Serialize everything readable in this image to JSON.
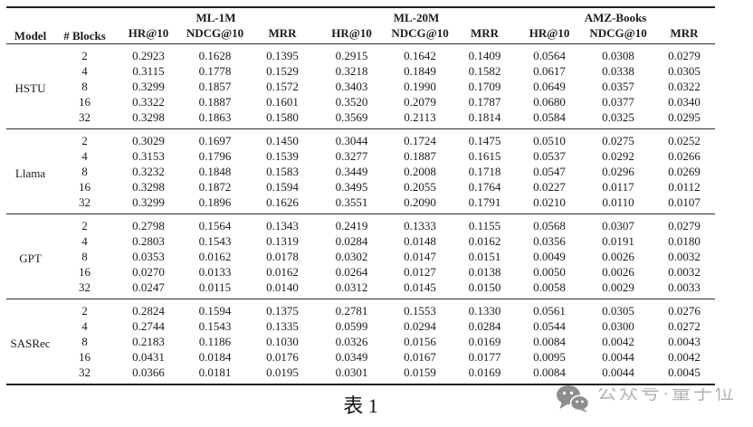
{
  "caption": "表 1",
  "watermark": {
    "icon": "wechat-icon",
    "text": "公众号·量子位"
  },
  "colors": {
    "text": "#1b1b1b",
    "rule_heavy": "#222222",
    "rule_light": "#2b2b2b",
    "watermark_icon": "#8d8d8d",
    "watermark_text": "#b3b3b3",
    "background": "#ffffff"
  },
  "table": {
    "header": {
      "model": "Model",
      "blocks": "# Blocks",
      "datasets": [
        "ML-1M",
        "ML-20M",
        "AMZ-Books"
      ],
      "metrics": [
        "HR@10",
        "NDCG@10",
        "MRR"
      ]
    },
    "groups": [
      {
        "model": "HSTU",
        "rows": [
          {
            "blocks": "2",
            "values": [
              "0.2923",
              "0.1628",
              "0.1395",
              "0.2915",
              "0.1642",
              "0.1409",
              "0.0564",
              "0.0308",
              "0.0279"
            ]
          },
          {
            "blocks": "4",
            "values": [
              "0.3115",
              "0.1778",
              "0.1529",
              "0.3218",
              "0.1849",
              "0.1582",
              "0.0617",
              "0.0338",
              "0.0305"
            ]
          },
          {
            "blocks": "8",
            "values": [
              "0.3299",
              "0.1857",
              "0.1572",
              "0.3403",
              "0.1990",
              "0.1709",
              "0.0649",
              "0.0357",
              "0.0322"
            ]
          },
          {
            "blocks": "16",
            "values": [
              "0.3322",
              "0.1887",
              "0.1601",
              "0.3520",
              "0.2079",
              "0.1787",
              "0.0680",
              "0.0377",
              "0.0340"
            ]
          },
          {
            "blocks": "32",
            "values": [
              "0.3298",
              "0.1863",
              "0.1580",
              "0.3569",
              "0.2113",
              "0.1814",
              "0.0584",
              "0.0325",
              "0.0295"
            ]
          }
        ]
      },
      {
        "model": "Llama",
        "rows": [
          {
            "blocks": "2",
            "values": [
              "0.3029",
              "0.1697",
              "0.1450",
              "0.3044",
              "0.1724",
              "0.1475",
              "0.0510",
              "0.0275",
              "0.0252"
            ]
          },
          {
            "blocks": "4",
            "values": [
              "0.3153",
              "0.1796",
              "0.1539",
              "0.3277",
              "0.1887",
              "0.1615",
              "0.0537",
              "0.0292",
              "0.0266"
            ]
          },
          {
            "blocks": "8",
            "values": [
              "0.3232",
              "0.1848",
              "0.1583",
              "0.3449",
              "0.2008",
              "0.1718",
              "0.0547",
              "0.0296",
              "0.0269"
            ]
          },
          {
            "blocks": "16",
            "values": [
              "0.3298",
              "0.1872",
              "0.1594",
              "0.3495",
              "0.2055",
              "0.1764",
              "0.0227",
              "0.0117",
              "0.0112"
            ]
          },
          {
            "blocks": "32",
            "values": [
              "0.3299",
              "0.1896",
              "0.1626",
              "0.3551",
              "0.2090",
              "0.1791",
              "0.0210",
              "0.0110",
              "0.0107"
            ]
          }
        ]
      },
      {
        "model": "GPT",
        "rows": [
          {
            "blocks": "2",
            "values": [
              "0.2798",
              "0.1564",
              "0.1343",
              "0.2419",
              "0.1333",
              "0.1155",
              "0.0568",
              "0.0307",
              "0.0279"
            ]
          },
          {
            "blocks": "4",
            "values": [
              "0.2803",
              "0.1543",
              "0.1319",
              "0.0284",
              "0.0148",
              "0.0162",
              "0.0356",
              "0.0191",
              "0.0180"
            ]
          },
          {
            "blocks": "8",
            "values": [
              "0.0353",
              "0.0162",
              "0.0178",
              "0.0302",
              "0.0147",
              "0.0151",
              "0.0049",
              "0.0026",
              "0.0032"
            ]
          },
          {
            "blocks": "16",
            "values": [
              "0.0270",
              "0.0133",
              "0.0162",
              "0.0264",
              "0.0127",
              "0.0138",
              "0.0050",
              "0.0026",
              "0.0032"
            ]
          },
          {
            "blocks": "32",
            "values": [
              "0.0247",
              "0.0115",
              "0.0140",
              "0.0312",
              "0.0145",
              "0.0150",
              "0.0058",
              "0.0029",
              "0.0033"
            ]
          }
        ]
      },
      {
        "model": "SASRec",
        "rows": [
          {
            "blocks": "2",
            "values": [
              "0.2824",
              "0.1594",
              "0.1375",
              "0.2781",
              "0.1553",
              "0.1330",
              "0.0561",
              "0.0305",
              "0.0276"
            ]
          },
          {
            "blocks": "4",
            "values": [
              "0.2744",
              "0.1543",
              "0.1335",
              "0.0599",
              "0.0294",
              "0.0284",
              "0.0544",
              "0.0300",
              "0.0272"
            ]
          },
          {
            "blocks": "8",
            "values": [
              "0.2183",
              "0.1186",
              "0.1030",
              "0.0326",
              "0.0156",
              "0.0169",
              "0.0084",
              "0.0042",
              "0.0043"
            ]
          },
          {
            "blocks": "16",
            "values": [
              "0.0431",
              "0.0184",
              "0.0176",
              "0.0349",
              "0.0167",
              "0.0177",
              "0.0095",
              "0.0044",
              "0.0042"
            ]
          },
          {
            "blocks": "32",
            "values": [
              "0.0366",
              "0.0181",
              "0.0195",
              "0.0301",
              "0.0159",
              "0.0169",
              "0.0084",
              "0.0044",
              "0.0045"
            ]
          }
        ]
      }
    ]
  }
}
